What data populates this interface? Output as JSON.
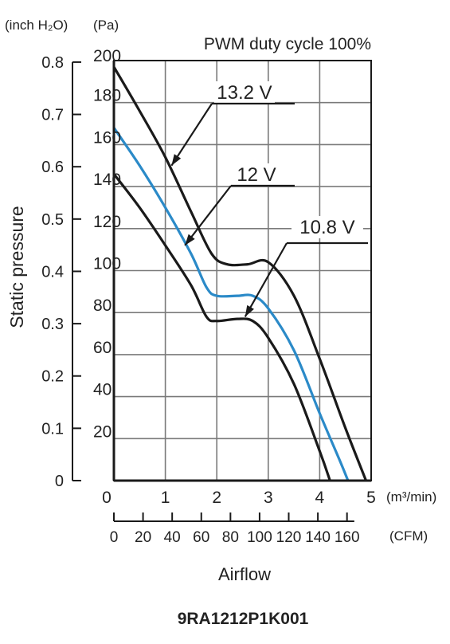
{
  "chart_data": {
    "type": "line",
    "title": "PWM duty cycle 100%",
    "model": "9RA1212P1K001",
    "xlabel": "Airflow",
    "ylabel": "Static pressure",
    "x_unit_primary": "(m³/min)",
    "x_unit_secondary": "(CFM)",
    "y_unit_left": "(inch H₂O)",
    "y_unit_right": "(Pa)",
    "xlim": [
      0,
      5
    ],
    "ylim": [
      0,
      200
    ],
    "grid": true,
    "x_ticks_m3min": [
      "0",
      "1",
      "2",
      "3",
      "4",
      "5"
    ],
    "x_ticks_cfm": [
      "0",
      "20",
      "40",
      "60",
      "80",
      "100",
      "120",
      "140",
      "160"
    ],
    "y_ticks_pa": [
      "20",
      "40",
      "60",
      "80",
      "100",
      "120",
      "140",
      "160",
      "180",
      "200"
    ],
    "y_ticks_inch": [
      "0",
      "0.1",
      "0.2",
      "0.3",
      "0.4",
      "0.5",
      "0.6",
      "0.7",
      "0.8"
    ],
    "series": [
      {
        "name": "13.2 V",
        "color": "#1a1a1a",
        "points": [
          [
            0,
            197
          ],
          [
            0.5,
            176
          ],
          [
            1.0,
            154
          ],
          [
            1.5,
            128
          ],
          [
            1.9,
            108
          ],
          [
            2.2,
            103
          ],
          [
            2.6,
            103
          ],
          [
            3.0,
            104
          ],
          [
            3.5,
            88
          ],
          [
            4.0,
            58
          ],
          [
            4.5,
            25
          ],
          [
            4.9,
            0
          ]
        ]
      },
      {
        "name": "12 V",
        "color": "#2b8ac8",
        "points": [
          [
            0,
            168
          ],
          [
            0.5,
            150
          ],
          [
            1.0,
            130
          ],
          [
            1.5,
            108
          ],
          [
            1.8,
            92
          ],
          [
            2.0,
            88
          ],
          [
            2.4,
            88
          ],
          [
            2.7,
            88
          ],
          [
            3.0,
            82
          ],
          [
            3.5,
            62
          ],
          [
            4.0,
            32
          ],
          [
            4.4,
            9
          ],
          [
            4.55,
            0
          ]
        ]
      },
      {
        "name": "10.8 V",
        "color": "#1a1a1a",
        "points": [
          [
            0,
            146
          ],
          [
            0.5,
            130
          ],
          [
            1.0,
            112
          ],
          [
            1.5,
            93
          ],
          [
            1.8,
            78
          ],
          [
            2.0,
            76
          ],
          [
            2.4,
            77
          ],
          [
            2.7,
            76
          ],
          [
            3.0,
            68
          ],
          [
            3.5,
            46
          ],
          [
            4.0,
            14
          ],
          [
            4.2,
            0
          ]
        ]
      }
    ],
    "annotations": [
      {
        "text": "13.2 V",
        "target": [
          1.12,
          150
        ]
      },
      {
        "text": "12 V",
        "target": [
          1.38,
          112
        ]
      },
      {
        "text": "10.8 V",
        "target": [
          2.55,
          78
        ]
      }
    ]
  }
}
